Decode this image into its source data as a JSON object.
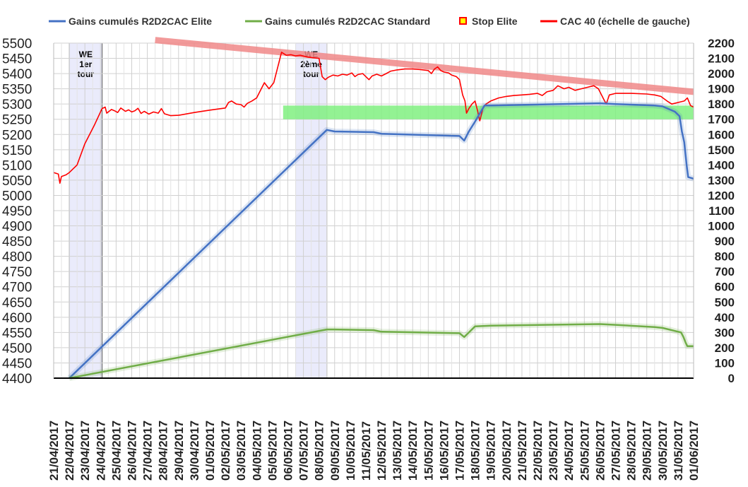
{
  "chart_data": {
    "type": "line",
    "title": "",
    "legend": {
      "position": "top",
      "entries": [
        {
          "label": "Gains cumulés R2D2CAC Elite",
          "color": "#4472c4",
          "marker": "line"
        },
        {
          "label": "Gains cumulés R2D2CAC Standard",
          "color": "#70ad47",
          "marker": "line"
        },
        {
          "label": "Stop Elite",
          "color": "#ff0000",
          "fill": "#ffff00",
          "marker": "square"
        },
        {
          "label": "CAC 40 (échelle de gauche)",
          "color": "#ff0000",
          "marker": "line"
        }
      ]
    },
    "y_left": {
      "min": 4400,
      "max": 5500,
      "step": 50
    },
    "y_right": {
      "min": 0,
      "max": 2200,
      "step": 100
    },
    "x_dates": [
      "21/04/2017",
      "22/04/2017",
      "23/04/2017",
      "24/04/2017",
      "25/04/2017",
      "26/04/2017",
      "27/04/2017",
      "28/04/2017",
      "29/04/2017",
      "30/04/2017",
      "01/05/2017",
      "02/05/2017",
      "03/05/2017",
      "04/05/2017",
      "05/05/2017",
      "06/05/2017",
      "07/05/2017",
      "08/05/2017",
      "09/05/2017",
      "10/05/2017",
      "11/05/2017",
      "12/05/2017",
      "13/05/2017",
      "14/05/2017",
      "15/05/2017",
      "16/05/2017",
      "17/05/2017",
      "18/05/2017",
      "19/05/2017",
      "20/05/2017",
      "21/05/2017",
      "22/05/2017",
      "23/05/2017",
      "24/05/2017",
      "25/05/2017",
      "26/05/2017",
      "27/05/2017",
      "28/05/2017",
      "29/05/2017",
      "30/05/2017",
      "31/05/2017",
      "01/06/2017"
    ],
    "grid": true,
    "shaded_periods": [
      {
        "label_lines": [
          "WE",
          "1er",
          "tour"
        ],
        "x_start": 1.0,
        "x_end": 3.1
      },
      {
        "label_lines": [
          "WE",
          "2ème",
          "tour"
        ],
        "x_start": 15.5,
        "x_end": 17.5
      }
    ],
    "series": [
      {
        "name": "CAC 40 (échelle de gauche)",
        "axis": "left",
        "color": "#ff0000",
        "points": [
          [
            0.0,
            5075
          ],
          [
            0.3,
            5070
          ],
          [
            0.4,
            5040
          ],
          [
            0.5,
            5062
          ],
          [
            0.8,
            5068
          ],
          [
            1.0,
            5075
          ],
          [
            1.5,
            5100
          ],
          [
            2.0,
            5170
          ],
          [
            2.6,
            5230
          ],
          [
            3.1,
            5285
          ],
          [
            3.3,
            5290
          ],
          [
            3.4,
            5270
          ],
          [
            3.7,
            5282
          ],
          [
            3.9,
            5278
          ],
          [
            4.1,
            5272
          ],
          [
            4.3,
            5287
          ],
          [
            4.6,
            5276
          ],
          [
            4.8,
            5281
          ],
          [
            5.0,
            5274
          ],
          [
            5.2,
            5278
          ],
          [
            5.4,
            5286
          ],
          [
            5.6,
            5269
          ],
          [
            5.8,
            5276
          ],
          [
            6.1,
            5267
          ],
          [
            6.4,
            5274
          ],
          [
            6.7,
            5270
          ],
          [
            6.9,
            5285
          ],
          [
            7.1,
            5268
          ],
          [
            7.5,
            5262
          ],
          [
            8.0,
            5263
          ],
          [
            9.0,
            5272
          ],
          [
            10.0,
            5280
          ],
          [
            11.0,
            5287
          ],
          [
            11.2,
            5305
          ],
          [
            11.4,
            5310
          ],
          [
            11.7,
            5300
          ],
          [
            12.0,
            5298
          ],
          [
            12.2,
            5290
          ],
          [
            12.4,
            5302
          ],
          [
            12.7,
            5310
          ],
          [
            13.0,
            5320
          ],
          [
            13.3,
            5350
          ],
          [
            13.5,
            5370
          ],
          [
            13.8,
            5350
          ],
          [
            14.1,
            5370
          ],
          [
            14.3,
            5410
          ],
          [
            14.6,
            5470
          ],
          [
            14.9,
            5460
          ],
          [
            15.2,
            5462
          ],
          [
            15.5,
            5458
          ],
          [
            15.8,
            5460
          ],
          [
            16.2,
            5455
          ],
          [
            16.6,
            5452
          ],
          [
            17.0,
            5450
          ],
          [
            17.2,
            5390
          ],
          [
            17.4,
            5380
          ],
          [
            17.6,
            5388
          ],
          [
            17.9,
            5395
          ],
          [
            18.2,
            5392
          ],
          [
            18.5,
            5398
          ],
          [
            18.8,
            5395
          ],
          [
            19.1,
            5402
          ],
          [
            19.3,
            5390
          ],
          [
            19.5,
            5397
          ],
          [
            19.8,
            5400
          ],
          [
            20.0,
            5390
          ],
          [
            20.2,
            5380
          ],
          [
            20.4,
            5392
          ],
          [
            20.7,
            5398
          ],
          [
            21.0,
            5392
          ],
          [
            21.3,
            5400
          ],
          [
            21.6,
            5408
          ],
          [
            22.0,
            5412
          ],
          [
            22.5,
            5415
          ],
          [
            23.0,
            5415
          ],
          [
            23.5,
            5413
          ],
          [
            24.0,
            5410
          ],
          [
            24.2,
            5400
          ],
          [
            24.4,
            5415
          ],
          [
            24.6,
            5422
          ],
          [
            24.8,
            5410
          ],
          [
            25.0,
            5405
          ],
          [
            25.3,
            5402
          ],
          [
            25.5,
            5395
          ],
          [
            25.8,
            5390
          ],
          [
            26.0,
            5380
          ],
          [
            26.2,
            5330
          ],
          [
            26.35,
            5310
          ],
          [
            26.45,
            5270
          ],
          [
            26.6,
            5285
          ],
          [
            26.8,
            5300
          ],
          [
            27.0,
            5310
          ],
          [
            27.15,
            5280
          ],
          [
            27.3,
            5245
          ],
          [
            27.5,
            5285
          ],
          [
            27.7,
            5300
          ],
          [
            28.0,
            5310
          ],
          [
            28.5,
            5320
          ],
          [
            29.0,
            5325
          ],
          [
            29.5,
            5328
          ],
          [
            30.0,
            5330
          ],
          [
            30.5,
            5332
          ],
          [
            31.0,
            5335
          ],
          [
            31.3,
            5328
          ],
          [
            31.6,
            5340
          ],
          [
            32.0,
            5345
          ],
          [
            32.3,
            5360
          ],
          [
            32.7,
            5350
          ],
          [
            33.0,
            5355
          ],
          [
            33.4,
            5345
          ],
          [
            33.8,
            5350
          ],
          [
            34.2,
            5355
          ],
          [
            34.6,
            5360
          ],
          [
            34.9,
            5350
          ],
          [
            35.2,
            5320
          ],
          [
            35.4,
            5300
          ],
          [
            35.6,
            5330
          ],
          [
            36.0,
            5335
          ],
          [
            37.0,
            5335
          ],
          [
            38.0,
            5333
          ],
          [
            38.5,
            5330
          ],
          [
            38.9,
            5325
          ],
          [
            39.3,
            5310
          ],
          [
            39.6,
            5300
          ],
          [
            40.0,
            5305
          ],
          [
            40.4,
            5310
          ],
          [
            40.6,
            5320
          ],
          [
            40.8,
            5295
          ],
          [
            41.0,
            5290
          ]
        ]
      },
      {
        "name": "Gains cumulés R2D2CAC Elite",
        "axis": "right",
        "color": "#4472c4",
        "points": [
          [
            1.0,
            0
          ],
          [
            17.5,
            1630
          ],
          [
            18.0,
            1620
          ],
          [
            20.5,
            1615
          ],
          [
            21.0,
            1605
          ],
          [
            26.0,
            1590
          ],
          [
            26.3,
            1560
          ],
          [
            26.6,
            1620
          ],
          [
            27.0,
            1685
          ],
          [
            27.6,
            1790
          ],
          [
            28.0,
            1790
          ],
          [
            35.0,
            1805
          ],
          [
            36.0,
            1800
          ],
          [
            38.5,
            1790
          ],
          [
            39.0,
            1785
          ],
          [
            39.8,
            1750
          ],
          [
            40.1,
            1720
          ],
          [
            40.25,
            1620
          ],
          [
            40.4,
            1550
          ],
          [
            40.55,
            1400
          ],
          [
            40.65,
            1320
          ],
          [
            41.0,
            1310
          ]
        ]
      },
      {
        "name": "Gains cumulés R2D2CAC Standard",
        "axis": "right",
        "color": "#70ad47",
        "points": [
          [
            1.0,
            0
          ],
          [
            17.5,
            320
          ],
          [
            18.0,
            320
          ],
          [
            20.5,
            315
          ],
          [
            21.0,
            305
          ],
          [
            26.0,
            295
          ],
          [
            26.3,
            270
          ],
          [
            26.6,
            300
          ],
          [
            27.0,
            340
          ],
          [
            28.0,
            345
          ],
          [
            35.0,
            355
          ],
          [
            36.0,
            350
          ],
          [
            38.5,
            335
          ],
          [
            39.0,
            330
          ],
          [
            39.8,
            310
          ],
          [
            40.2,
            300
          ],
          [
            40.35,
            270
          ],
          [
            40.5,
            230
          ],
          [
            40.6,
            210
          ],
          [
            41.0,
            210
          ]
        ]
      },
      {
        "name": "Stop Elite",
        "axis": "right",
        "color": "#ff0000",
        "band": {
          "x_start": 14.7,
          "x_end": 41.0,
          "y_low": 1700,
          "y_high": 1790
        },
        "trend_line": {
          "x_start": 6.5,
          "x_end": 41.0,
          "y_start": 2220,
          "y_end": 1880
        }
      }
    ]
  }
}
